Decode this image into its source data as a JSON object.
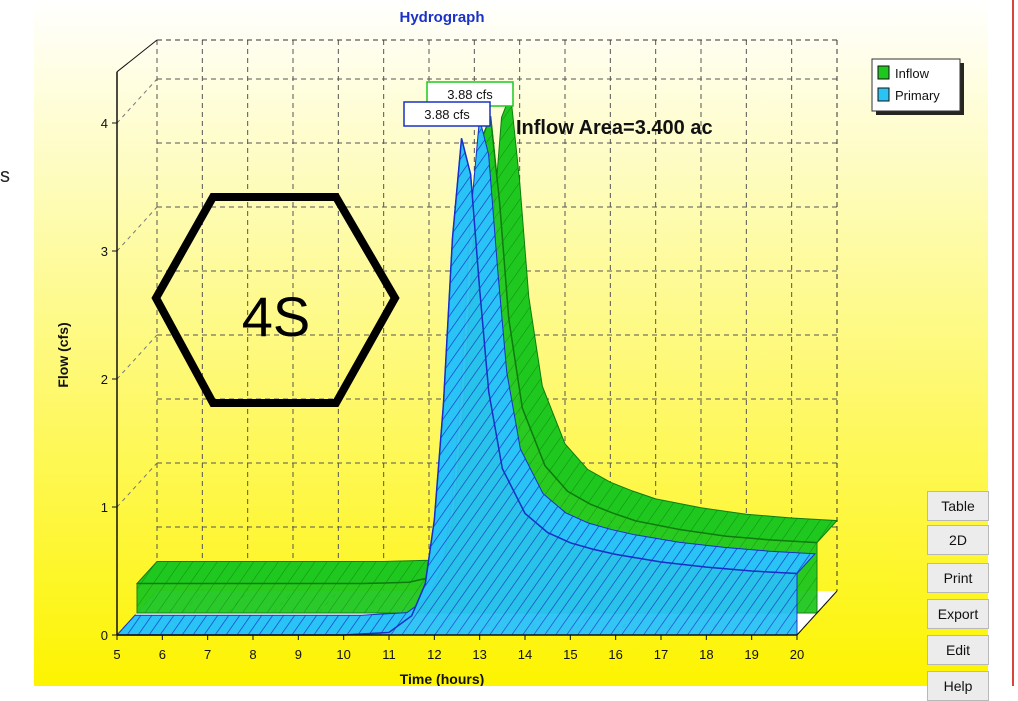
{
  "title": "Hydrograph",
  "annotation": "Inflow Area=3.400 ac",
  "overlay_label": "4S",
  "left_edge_char": "s",
  "legend": [
    {
      "label": "Inflow",
      "color": "#1ec81e"
    },
    {
      "label": "Primary",
      "color": "#29c3f5"
    }
  ],
  "peak_labels": [
    "3.88 cfs",
    "3.88 cfs"
  ],
  "buttons": [
    "Table",
    "2D",
    "Print",
    "Export",
    "Edit",
    "Help"
  ],
  "colors": {
    "bg_top": "#ffffff",
    "bg_bottom": "#fdf400",
    "title": "#1a32c8",
    "inflow": "#1ec81e",
    "primary": "#29c3f5",
    "hexagon": "#000000"
  },
  "chart_data": {
    "type": "area",
    "title": "Hydrograph",
    "xlabel": "Time (hours)",
    "ylabel": "Flow (cfs)",
    "xlim": [
      5,
      20
    ],
    "ylim": [
      0,
      4
    ],
    "xticks": [
      "5",
      "6",
      "7",
      "8",
      "9",
      "10",
      "11",
      "12",
      "13",
      "14",
      "15",
      "16",
      "17",
      "18",
      "19",
      "20"
    ],
    "yticks": [
      "0",
      "1",
      "2",
      "3",
      "4"
    ],
    "grid": true,
    "legend_position": "top-right",
    "style": "3d",
    "x": [
      5,
      6,
      7,
      8,
      9,
      10,
      11,
      11.5,
      11.8,
      12,
      12.2,
      12.4,
      12.6,
      12.8,
      13,
      13.2,
      13.5,
      14,
      14.5,
      15,
      15.5,
      16,
      17,
      18,
      19,
      20
    ],
    "series": [
      {
        "name": "Inflow",
        "values": [
          0.23,
          0.23,
          0.23,
          0.23,
          0.23,
          0.23,
          0.24,
          0.28,
          0.45,
          0.8,
          1.6,
          2.8,
          3.7,
          3.88,
          3.2,
          2.3,
          1.6,
          1.15,
          0.95,
          0.85,
          0.78,
          0.72,
          0.65,
          0.6,
          0.57,
          0.55
        ]
      },
      {
        "name": "Primary",
        "values": [
          0,
          0,
          0,
          0,
          0,
          0,
          0.02,
          0.15,
          0.4,
          0.9,
          1.8,
          3.1,
          3.88,
          3.6,
          2.7,
          1.9,
          1.3,
          0.95,
          0.8,
          0.72,
          0.67,
          0.63,
          0.57,
          0.53,
          0.5,
          0.48
        ]
      }
    ],
    "peak_value": 3.88,
    "peak_unit": "cfs"
  }
}
